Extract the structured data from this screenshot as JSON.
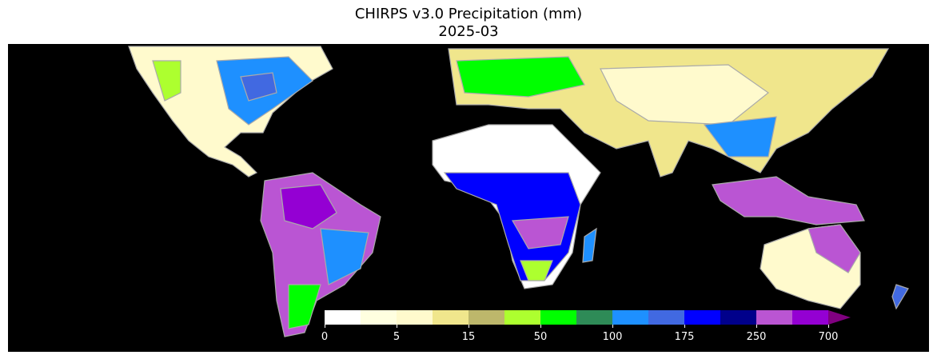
{
  "title": "CHIRPS v3.0 Precipitation (mm)",
  "subtitle": "2025-03",
  "colorbar": {
    "colors": [
      "#ffffff",
      "#ffffe0",
      "#fffacd",
      "#f0e68c",
      "#bdb76b",
      "#adff2f",
      "#00ff00",
      "#2e8b57",
      "#1e90ff",
      "#4169e1",
      "#0000ff",
      "#00008b",
      "#ba55d3",
      "#9400d3"
    ],
    "extend_color": "#800080",
    "tick_labels": [
      "0",
      "5",
      "15",
      "50",
      "100",
      "175",
      "250",
      "700"
    ]
  },
  "map": {
    "background": "#000000",
    "coastline_color": "#aaaaaa"
  }
}
